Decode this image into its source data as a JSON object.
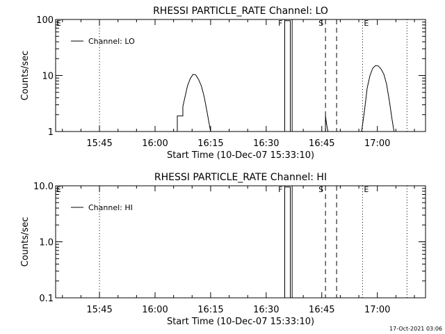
{
  "chart_data": [
    {
      "type": "line",
      "title": "RHESSI PARTICLE_RATE Channel: LO",
      "xlabel": "Start Time (10-Dec-07 15:33:10)",
      "ylabel": "Counts/sec",
      "yscale": "log",
      "ylim": [
        1,
        100
      ],
      "yticks": [
        1,
        10,
        100
      ],
      "ytick_labels": [
        "1",
        "10",
        "100"
      ],
      "xlim": [
        "15:33:10",
        "17:13:00"
      ],
      "xticks": [
        "15:45",
        "16:00",
        "16:15",
        "16:30",
        "16:45",
        "17:00"
      ],
      "legend": {
        "position": "top-left",
        "entries": [
          "Channel: LO"
        ]
      },
      "series": [
        {
          "name": "Channel: LO",
          "x": [
            "16:06:00",
            "16:06:00",
            "16:07:30",
            "16:07:30",
            "16:08:45",
            "16:09:30",
            "16:10:15",
            "16:11:00",
            "16:11:45",
            "16:12:30",
            "16:13:15",
            "16:14:00",
            "16:14:30",
            "16:15:00",
            "16:35:00",
            "16:35:00",
            "16:35:30",
            "16:36:30",
            "16:36:30",
            "16:46:00",
            "16:46:00",
            "16:46:20",
            "16:46:40",
            "16:47:00",
            "16:47:00",
            "16:55:45",
            "16:56:30",
            "16:57:15",
            "16:58:00",
            "16:58:45",
            "16:59:30",
            "17:00:15",
            "17:01:00",
            "17:01:45",
            "17:02:30",
            "17:03:15",
            "17:04:00",
            "17:04:30"
          ],
          "y": [
            1,
            1.9,
            1.9,
            2.8,
            6.5,
            8.8,
            10.5,
            10.2,
            8.5,
            6.5,
            4.2,
            2.3,
            1.5,
            1,
            1,
            95,
            95,
            95,
            1,
            1,
            1.9,
            1.3,
            1,
            1,
            1,
            1,
            2.3,
            6,
            10,
            13.5,
            15,
            14.8,
            13,
            10.5,
            7,
            3.5,
            1.6,
            1
          ]
        }
      ],
      "annotations": [
        {
          "label": "E",
          "time": "15:33:10",
          "style": "solid"
        },
        {
          "label": "",
          "time": "15:45:00",
          "style": "dotted"
        },
        {
          "label": "F",
          "time": "16:35:00",
          "style": "solid"
        },
        {
          "label": "",
          "time": "16:37:00",
          "style": "solid"
        },
        {
          "label": "S",
          "time": "16:46:00",
          "style": "dashed"
        },
        {
          "label": "",
          "time": "16:49:00",
          "style": "dashed"
        },
        {
          "label": "E",
          "time": "16:56:00",
          "style": "dotted"
        },
        {
          "label": "",
          "time": "17:08:00",
          "style": "dotted"
        }
      ]
    },
    {
      "type": "line",
      "title": "RHESSI PARTICLE_RATE Channel: HI",
      "xlabel": "Start Time (10-Dec-07 15:33:10)",
      "ylabel": "Counts/sec",
      "yscale": "log",
      "ylim": [
        0.1,
        10
      ],
      "yticks": [
        0.1,
        1,
        10
      ],
      "ytick_labels": [
        "0.1",
        "1.0",
        "10.0"
      ],
      "xlim": [
        "15:33:10",
        "17:13:00"
      ],
      "xticks": [
        "15:45",
        "16:00",
        "16:15",
        "16:30",
        "16:45",
        "17:00"
      ],
      "legend": {
        "position": "top-left",
        "entries": [
          "Channel: HI"
        ]
      },
      "series": [
        {
          "name": "Channel: HI",
          "x": [
            "16:35:00",
            "16:35:00",
            "16:36:30",
            "16:36:30"
          ],
          "y": [
            0.1,
            9.5,
            9.5,
            0.1
          ]
        }
      ],
      "annotations": [
        {
          "label": "E",
          "time": "15:33:10",
          "style": "solid"
        },
        {
          "label": "",
          "time": "15:45:00",
          "style": "dotted"
        },
        {
          "label": "F",
          "time": "16:35:00",
          "style": "solid"
        },
        {
          "label": "",
          "time": "16:37:00",
          "style": "solid"
        },
        {
          "label": "S",
          "time": "16:46:00",
          "style": "dashed"
        },
        {
          "label": "",
          "time": "16:49:00",
          "style": "dashed"
        },
        {
          "label": "E",
          "time": "16:56:00",
          "style": "dotted"
        },
        {
          "label": "",
          "time": "17:08:00",
          "style": "dotted"
        }
      ]
    }
  ],
  "footer": "17-Oct-2021 03:06"
}
